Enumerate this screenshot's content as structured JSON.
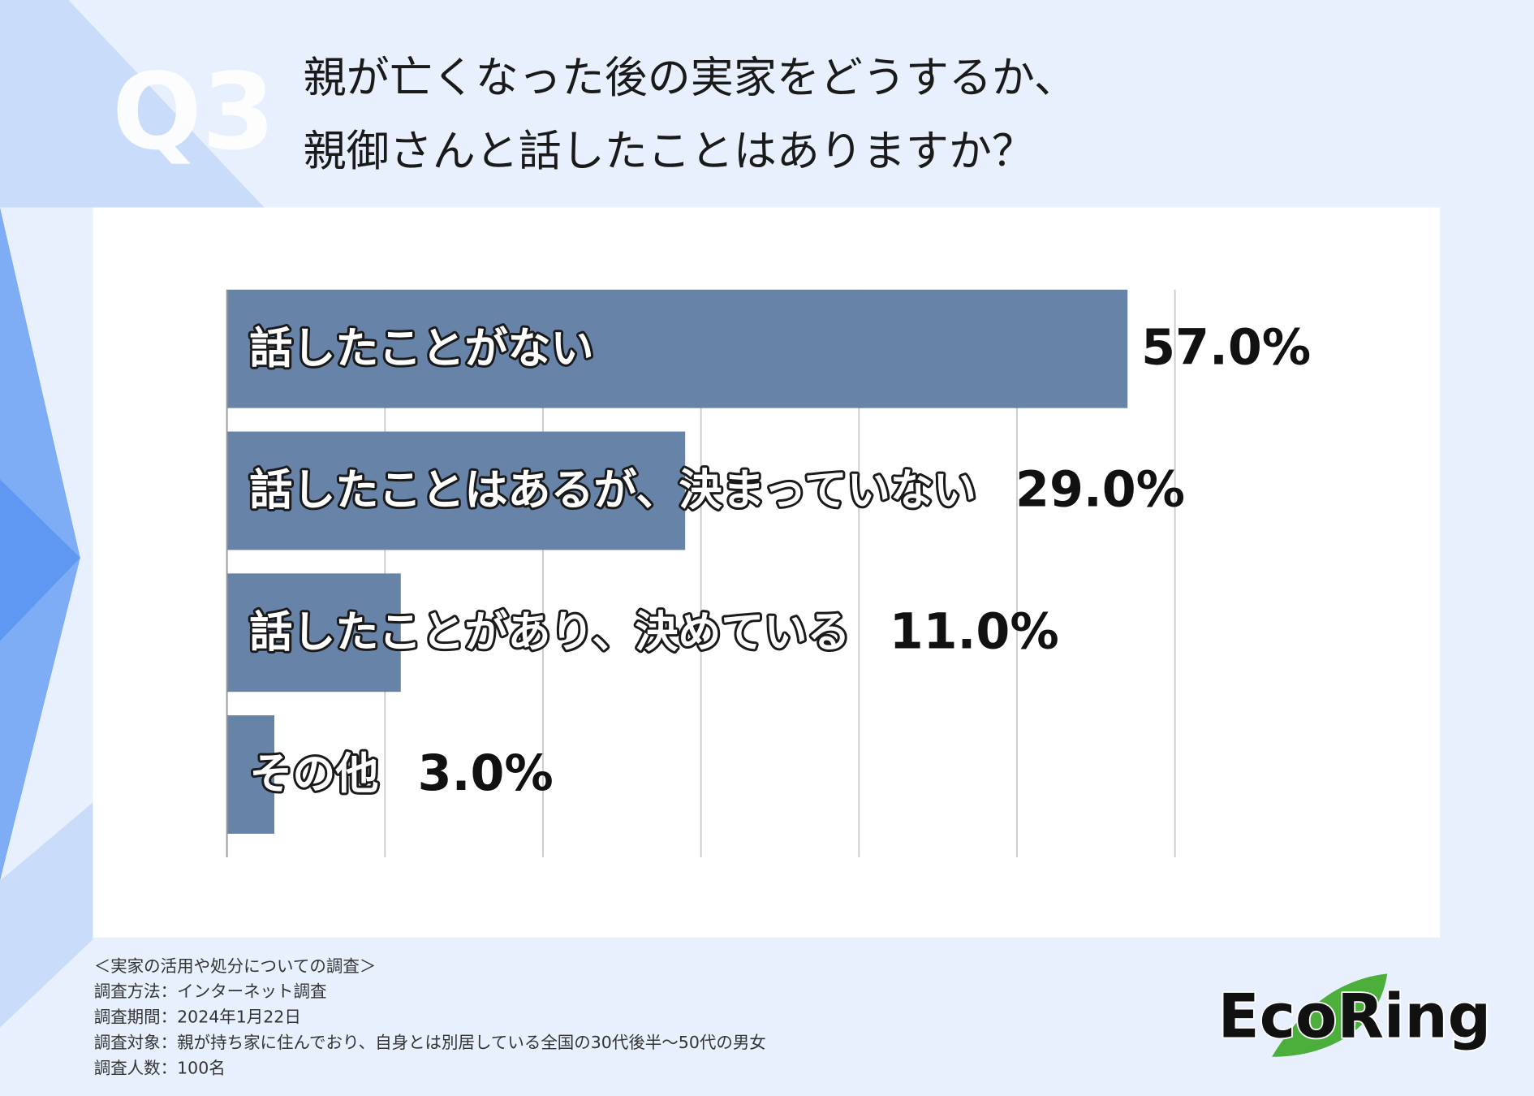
{
  "chart_data": {
    "type": "barh",
    "badge": "Q3",
    "title": [
      "親が亡くなった後の実家をどうするか、",
      "親御さんと話したことはありますか？"
    ],
    "categories": [
      "話したことがない",
      "話したことはあるが、決まっていない",
      "話したことがあり、決めている",
      "その他"
    ],
    "values": [
      57,
      29,
      11,
      3
    ],
    "value_labels": [
      "57.0%",
      "29.0%",
      "11.0%",
      "3.0%"
    ],
    "color": "#6783a8",
    "xlim": [
      0,
      60
    ],
    "xticks": [
      0,
      10,
      20,
      30,
      40,
      50,
      60
    ],
    "grid": true
  },
  "footer": {
    "notes": [
      "＜実家の活用や処分についての調査＞",
      "調査方法：インターネット調査",
      "調査期間：2024年1月22日",
      "調査対象：親が持ち家に住んでおり、自身とは別居している全国の30代後半〜50代の男女",
      "調査人数：100名"
    ]
  },
  "logo": "EcoRing"
}
